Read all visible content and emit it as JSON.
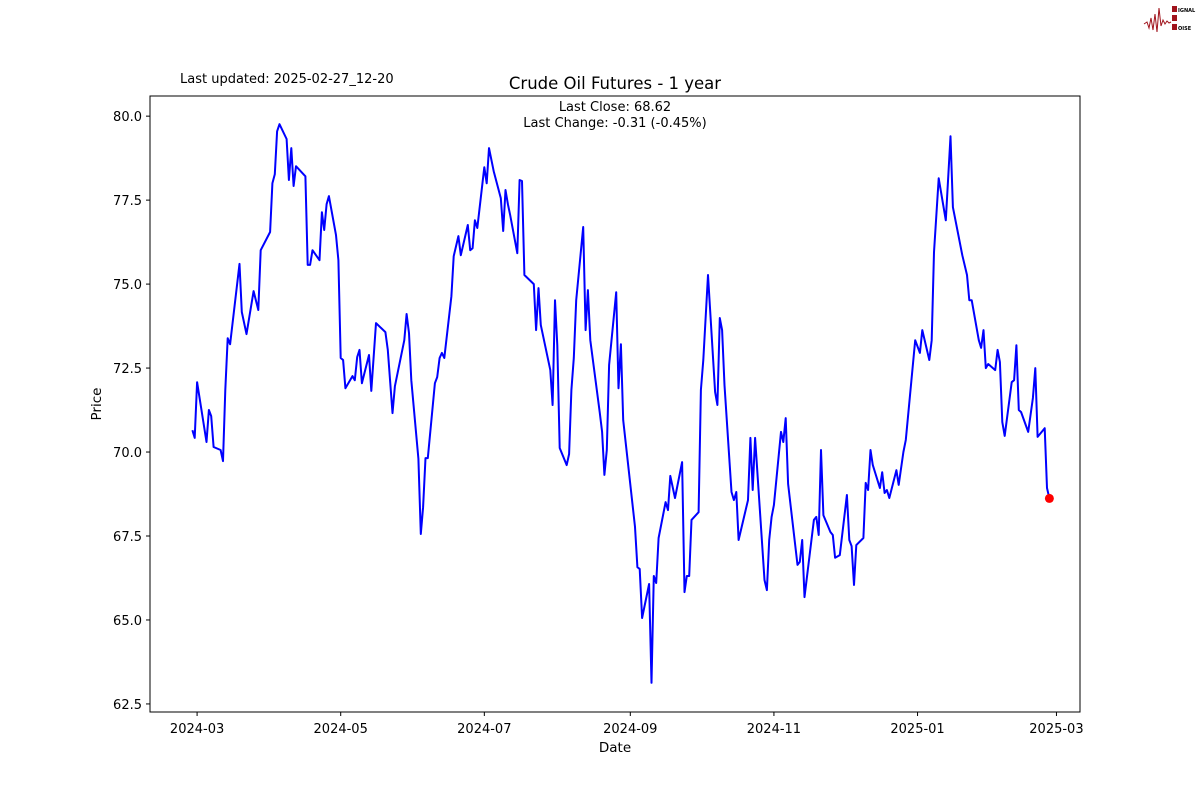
{
  "logo": {
    "text": [
      "SIGNAL",
      "2",
      "NOISE"
    ],
    "color": "#a0131c"
  },
  "last_updated": "Last updated: 2025-02-27_12-20",
  "chart_data": {
    "type": "line",
    "title": "Crude Oil Futures - 1 year",
    "annotation_lines": [
      "Last Close: 68.62",
      "Last Change: -0.31 (-0.45%)"
    ],
    "xlabel": "Date",
    "ylabel": "Price",
    "xlim": [
      "2024-02-10",
      "2025-03-11"
    ],
    "ylim": [
      62.26,
      80.6
    ],
    "grid": false,
    "line_color": "#0000ff",
    "marker_color": "#ff0000",
    "x_ticks": [
      {
        "date": "2024-03-01",
        "label": "2024-03"
      },
      {
        "date": "2024-05-01",
        "label": "2024-05"
      },
      {
        "date": "2024-07-01",
        "label": "2024-07"
      },
      {
        "date": "2024-09-01",
        "label": "2024-09"
      },
      {
        "date": "2024-11-01",
        "label": "2024-11"
      },
      {
        "date": "2025-01-01",
        "label": "2025-01"
      },
      {
        "date": "2025-03-01",
        "label": "2025-03"
      }
    ],
    "y_ticks": [
      62.5,
      65.0,
      67.5,
      70.0,
      72.5,
      75.0,
      77.5,
      80.0
    ],
    "y_tick_labels": [
      "62.5",
      "65.0",
      "67.5",
      "70.0",
      "72.5",
      "75.0",
      "77.5",
      "80.0"
    ],
    "points": [
      [
        "2024-02-28",
        70.65
      ],
      [
        "2024-02-29",
        70.42
      ],
      [
        "2024-03-01",
        72.08
      ],
      [
        "2024-03-05",
        70.3
      ],
      [
        "2024-03-06",
        71.25
      ],
      [
        "2024-03-07",
        71.07
      ],
      [
        "2024-03-08",
        70.15
      ],
      [
        "2024-03-11",
        70.06
      ],
      [
        "2024-03-12",
        69.73
      ],
      [
        "2024-03-13",
        71.85
      ],
      [
        "2024-03-14",
        73.39
      ],
      [
        "2024-03-15",
        73.21
      ],
      [
        "2024-03-19",
        75.6
      ],
      [
        "2024-03-20",
        74.17
      ],
      [
        "2024-03-22",
        73.51
      ],
      [
        "2024-03-25",
        74.79
      ],
      [
        "2024-03-27",
        74.23
      ],
      [
        "2024-03-28",
        76.01
      ],
      [
        "2024-04-01",
        76.55
      ],
      [
        "2024-04-02",
        78.0
      ],
      [
        "2024-04-03",
        78.27
      ],
      [
        "2024-04-04",
        79.55
      ],
      [
        "2024-04-05",
        79.76
      ],
      [
        "2024-04-08",
        79.32
      ],
      [
        "2024-04-09",
        78.1
      ],
      [
        "2024-04-10",
        79.05
      ],
      [
        "2024-04-11",
        77.92
      ],
      [
        "2024-04-12",
        78.51
      ],
      [
        "2024-04-16",
        78.21
      ],
      [
        "2024-04-17",
        75.57
      ],
      [
        "2024-04-18",
        75.57
      ],
      [
        "2024-04-19",
        76.01
      ],
      [
        "2024-04-22",
        75.71
      ],
      [
        "2024-04-23",
        77.14
      ],
      [
        "2024-04-24",
        76.61
      ],
      [
        "2024-04-25",
        77.38
      ],
      [
        "2024-04-26",
        77.62
      ],
      [
        "2024-04-29",
        76.46
      ],
      [
        "2024-04-30",
        75.71
      ],
      [
        "2024-05-01",
        72.8
      ],
      [
        "2024-05-02",
        72.74
      ],
      [
        "2024-05-03",
        71.9
      ],
      [
        "2024-05-06",
        72.26
      ],
      [
        "2024-05-07",
        72.14
      ],
      [
        "2024-05-08",
        72.83
      ],
      [
        "2024-05-09",
        73.04
      ],
      [
        "2024-05-10",
        72.05
      ],
      [
        "2024-05-13",
        72.89
      ],
      [
        "2024-05-14",
        71.82
      ],
      [
        "2024-05-16",
        73.84
      ],
      [
        "2024-05-20",
        73.57
      ],
      [
        "2024-05-21",
        73.04
      ],
      [
        "2024-05-23",
        71.16
      ],
      [
        "2024-05-24",
        71.96
      ],
      [
        "2024-05-28",
        73.33
      ],
      [
        "2024-05-29",
        74.11
      ],
      [
        "2024-05-30",
        73.54
      ],
      [
        "2024-05-31",
        72.14
      ],
      [
        "2024-06-03",
        69.8
      ],
      [
        "2024-06-04",
        67.56
      ],
      [
        "2024-06-05",
        68.36
      ],
      [
        "2024-06-06",
        69.82
      ],
      [
        "2024-06-07",
        69.82
      ],
      [
        "2024-06-10",
        72.05
      ],
      [
        "2024-06-11",
        72.23
      ],
      [
        "2024-06-12",
        72.8
      ],
      [
        "2024-06-13",
        72.95
      ],
      [
        "2024-06-14",
        72.8
      ],
      [
        "2024-06-17",
        74.64
      ],
      [
        "2024-06-18",
        75.83
      ],
      [
        "2024-06-20",
        76.43
      ],
      [
        "2024-06-21",
        75.86
      ],
      [
        "2024-06-24",
        76.76
      ],
      [
        "2024-06-25",
        76.01
      ],
      [
        "2024-06-26",
        76.07
      ],
      [
        "2024-06-27",
        76.9
      ],
      [
        "2024-06-28",
        76.67
      ],
      [
        "2024-07-01",
        78.48
      ],
      [
        "2024-07-02",
        78.0
      ],
      [
        "2024-07-03",
        79.05
      ],
      [
        "2024-07-05",
        78.36
      ],
      [
        "2024-07-08",
        77.56
      ],
      [
        "2024-07-09",
        76.58
      ],
      [
        "2024-07-10",
        77.8
      ],
      [
        "2024-07-11",
        77.38
      ],
      [
        "2024-07-12",
        77.05
      ],
      [
        "2024-07-15",
        75.92
      ],
      [
        "2024-07-16",
        78.1
      ],
      [
        "2024-07-17",
        78.07
      ],
      [
        "2024-07-18",
        75.27
      ],
      [
        "2024-07-22",
        75.0
      ],
      [
        "2024-07-23",
        73.63
      ],
      [
        "2024-07-24",
        74.88
      ],
      [
        "2024-07-25",
        73.78
      ],
      [
        "2024-07-29",
        72.44
      ],
      [
        "2024-07-30",
        71.4
      ],
      [
        "2024-07-31",
        74.52
      ],
      [
        "2024-08-01",
        73.18
      ],
      [
        "2024-08-02",
        70.12
      ],
      [
        "2024-08-05",
        69.61
      ],
      [
        "2024-08-06",
        69.94
      ],
      [
        "2024-08-07",
        71.85
      ],
      [
        "2024-08-08",
        72.8
      ],
      [
        "2024-08-09",
        74.52
      ],
      [
        "2024-08-12",
        76.7
      ],
      [
        "2024-08-13",
        73.63
      ],
      [
        "2024-08-14",
        74.82
      ],
      [
        "2024-08-15",
        73.33
      ],
      [
        "2024-08-19",
        71.19
      ],
      [
        "2024-08-20",
        70.6
      ],
      [
        "2024-08-21",
        69.32
      ],
      [
        "2024-08-22",
        70.06
      ],
      [
        "2024-08-23",
        72.59
      ],
      [
        "2024-08-26",
        74.76
      ],
      [
        "2024-08-27",
        71.9
      ],
      [
        "2024-08-28",
        73.21
      ],
      [
        "2024-08-29",
        70.95
      ],
      [
        "2024-09-03",
        67.77
      ],
      [
        "2024-09-04",
        66.57
      ],
      [
        "2024-09-05",
        66.52
      ],
      [
        "2024-09-06",
        65.06
      ],
      [
        "2024-09-09",
        66.07
      ],
      [
        "2024-09-10",
        63.13
      ],
      [
        "2024-09-11",
        66.31
      ],
      [
        "2024-09-12",
        66.1
      ],
      [
        "2024-09-13",
        67.44
      ],
      [
        "2024-09-16",
        68.51
      ],
      [
        "2024-09-17",
        68.27
      ],
      [
        "2024-09-18",
        69.29
      ],
      [
        "2024-09-20",
        68.63
      ],
      [
        "2024-09-23",
        69.7
      ],
      [
        "2024-09-24",
        65.83
      ],
      [
        "2024-09-25",
        66.31
      ],
      [
        "2024-09-26",
        66.31
      ],
      [
        "2024-09-27",
        67.98
      ],
      [
        "2024-09-30",
        68.21
      ],
      [
        "2024-10-01",
        71.85
      ],
      [
        "2024-10-02",
        72.74
      ],
      [
        "2024-10-04",
        75.27
      ],
      [
        "2024-10-07",
        71.79
      ],
      [
        "2024-10-08",
        71.4
      ],
      [
        "2024-10-09",
        73.99
      ],
      [
        "2024-10-10",
        73.63
      ],
      [
        "2024-10-11",
        71.99
      ],
      [
        "2024-10-14",
        68.81
      ],
      [
        "2024-10-15",
        68.57
      ],
      [
        "2024-10-16",
        68.81
      ],
      [
        "2024-10-17",
        67.38
      ],
      [
        "2024-10-21",
        68.57
      ],
      [
        "2024-10-22",
        70.42
      ],
      [
        "2024-10-23",
        68.87
      ],
      [
        "2024-10-24",
        70.42
      ],
      [
        "2024-10-28",
        66.19
      ],
      [
        "2024-10-29",
        65.89
      ],
      [
        "2024-10-30",
        67.38
      ],
      [
        "2024-10-31",
        68.07
      ],
      [
        "2024-11-01",
        68.42
      ],
      [
        "2024-11-04",
        70.6
      ],
      [
        "2024-11-05",
        70.3
      ],
      [
        "2024-11-06",
        71.01
      ],
      [
        "2024-11-07",
        69.05
      ],
      [
        "2024-11-11",
        66.64
      ],
      [
        "2024-11-12",
        66.73
      ],
      [
        "2024-11-13",
        67.38
      ],
      [
        "2024-11-14",
        65.68
      ],
      [
        "2024-11-18",
        67.98
      ],
      [
        "2024-11-19",
        68.07
      ],
      [
        "2024-11-20",
        67.53
      ],
      [
        "2024-11-21",
        70.06
      ],
      [
        "2024-11-22",
        68.12
      ],
      [
        "2024-11-25",
        67.62
      ],
      [
        "2024-11-26",
        67.53
      ],
      [
        "2024-11-27",
        66.85
      ],
      [
        "2024-11-29",
        66.93
      ],
      [
        "2024-12-02",
        68.72
      ],
      [
        "2024-12-03",
        67.38
      ],
      [
        "2024-12-04",
        67.2
      ],
      [
        "2024-12-05",
        66.04
      ],
      [
        "2024-12-06",
        67.23
      ],
      [
        "2024-12-09",
        67.44
      ],
      [
        "2024-12-10",
        69.08
      ],
      [
        "2024-12-11",
        68.87
      ],
      [
        "2024-12-12",
        70.06
      ],
      [
        "2024-12-13",
        69.61
      ],
      [
        "2024-12-16",
        68.93
      ],
      [
        "2024-12-17",
        69.4
      ],
      [
        "2024-12-18",
        68.78
      ],
      [
        "2024-12-19",
        68.87
      ],
      [
        "2024-12-20",
        68.63
      ],
      [
        "2024-12-23",
        69.46
      ],
      [
        "2024-12-24",
        69.02
      ],
      [
        "2024-12-26",
        70.0
      ],
      [
        "2024-12-27",
        70.36
      ],
      [
        "2024-12-31",
        73.33
      ],
      [
        "2025-01-02",
        72.95
      ],
      [
        "2025-01-03",
        73.63
      ],
      [
        "2025-01-06",
        72.74
      ],
      [
        "2025-01-07",
        73.33
      ],
      [
        "2025-01-08",
        75.95
      ],
      [
        "2025-01-10",
        78.15
      ],
      [
        "2025-01-13",
        76.9
      ],
      [
        "2025-01-15",
        79.4
      ],
      [
        "2025-01-16",
        77.29
      ],
      [
        "2025-01-20",
        75.86
      ],
      [
        "2025-01-22",
        75.27
      ],
      [
        "2025-01-23",
        74.52
      ],
      [
        "2025-01-24",
        74.52
      ],
      [
        "2025-01-27",
        73.33
      ],
      [
        "2025-01-28",
        73.1
      ],
      [
        "2025-01-29",
        73.63
      ],
      [
        "2025-01-30",
        72.5
      ],
      [
        "2025-01-31",
        72.62
      ],
      [
        "2025-02-03",
        72.44
      ],
      [
        "2025-02-04",
        73.04
      ],
      [
        "2025-02-05",
        72.68
      ],
      [
        "2025-02-06",
        70.89
      ],
      [
        "2025-02-07",
        70.48
      ],
      [
        "2025-02-10",
        72.08
      ],
      [
        "2025-02-11",
        72.14
      ],
      [
        "2025-02-12",
        73.18
      ],
      [
        "2025-02-13",
        71.25
      ],
      [
        "2025-02-14",
        71.19
      ],
      [
        "2025-02-17",
        70.6
      ],
      [
        "2025-02-19",
        71.61
      ],
      [
        "2025-02-20",
        72.5
      ],
      [
        "2025-02-21",
        70.45
      ],
      [
        "2025-02-24",
        70.71
      ],
      [
        "2025-02-25",
        68.93
      ],
      [
        "2025-02-26",
        68.62
      ]
    ],
    "last_point": {
      "date": "2025-02-26",
      "value": 68.62
    }
  }
}
